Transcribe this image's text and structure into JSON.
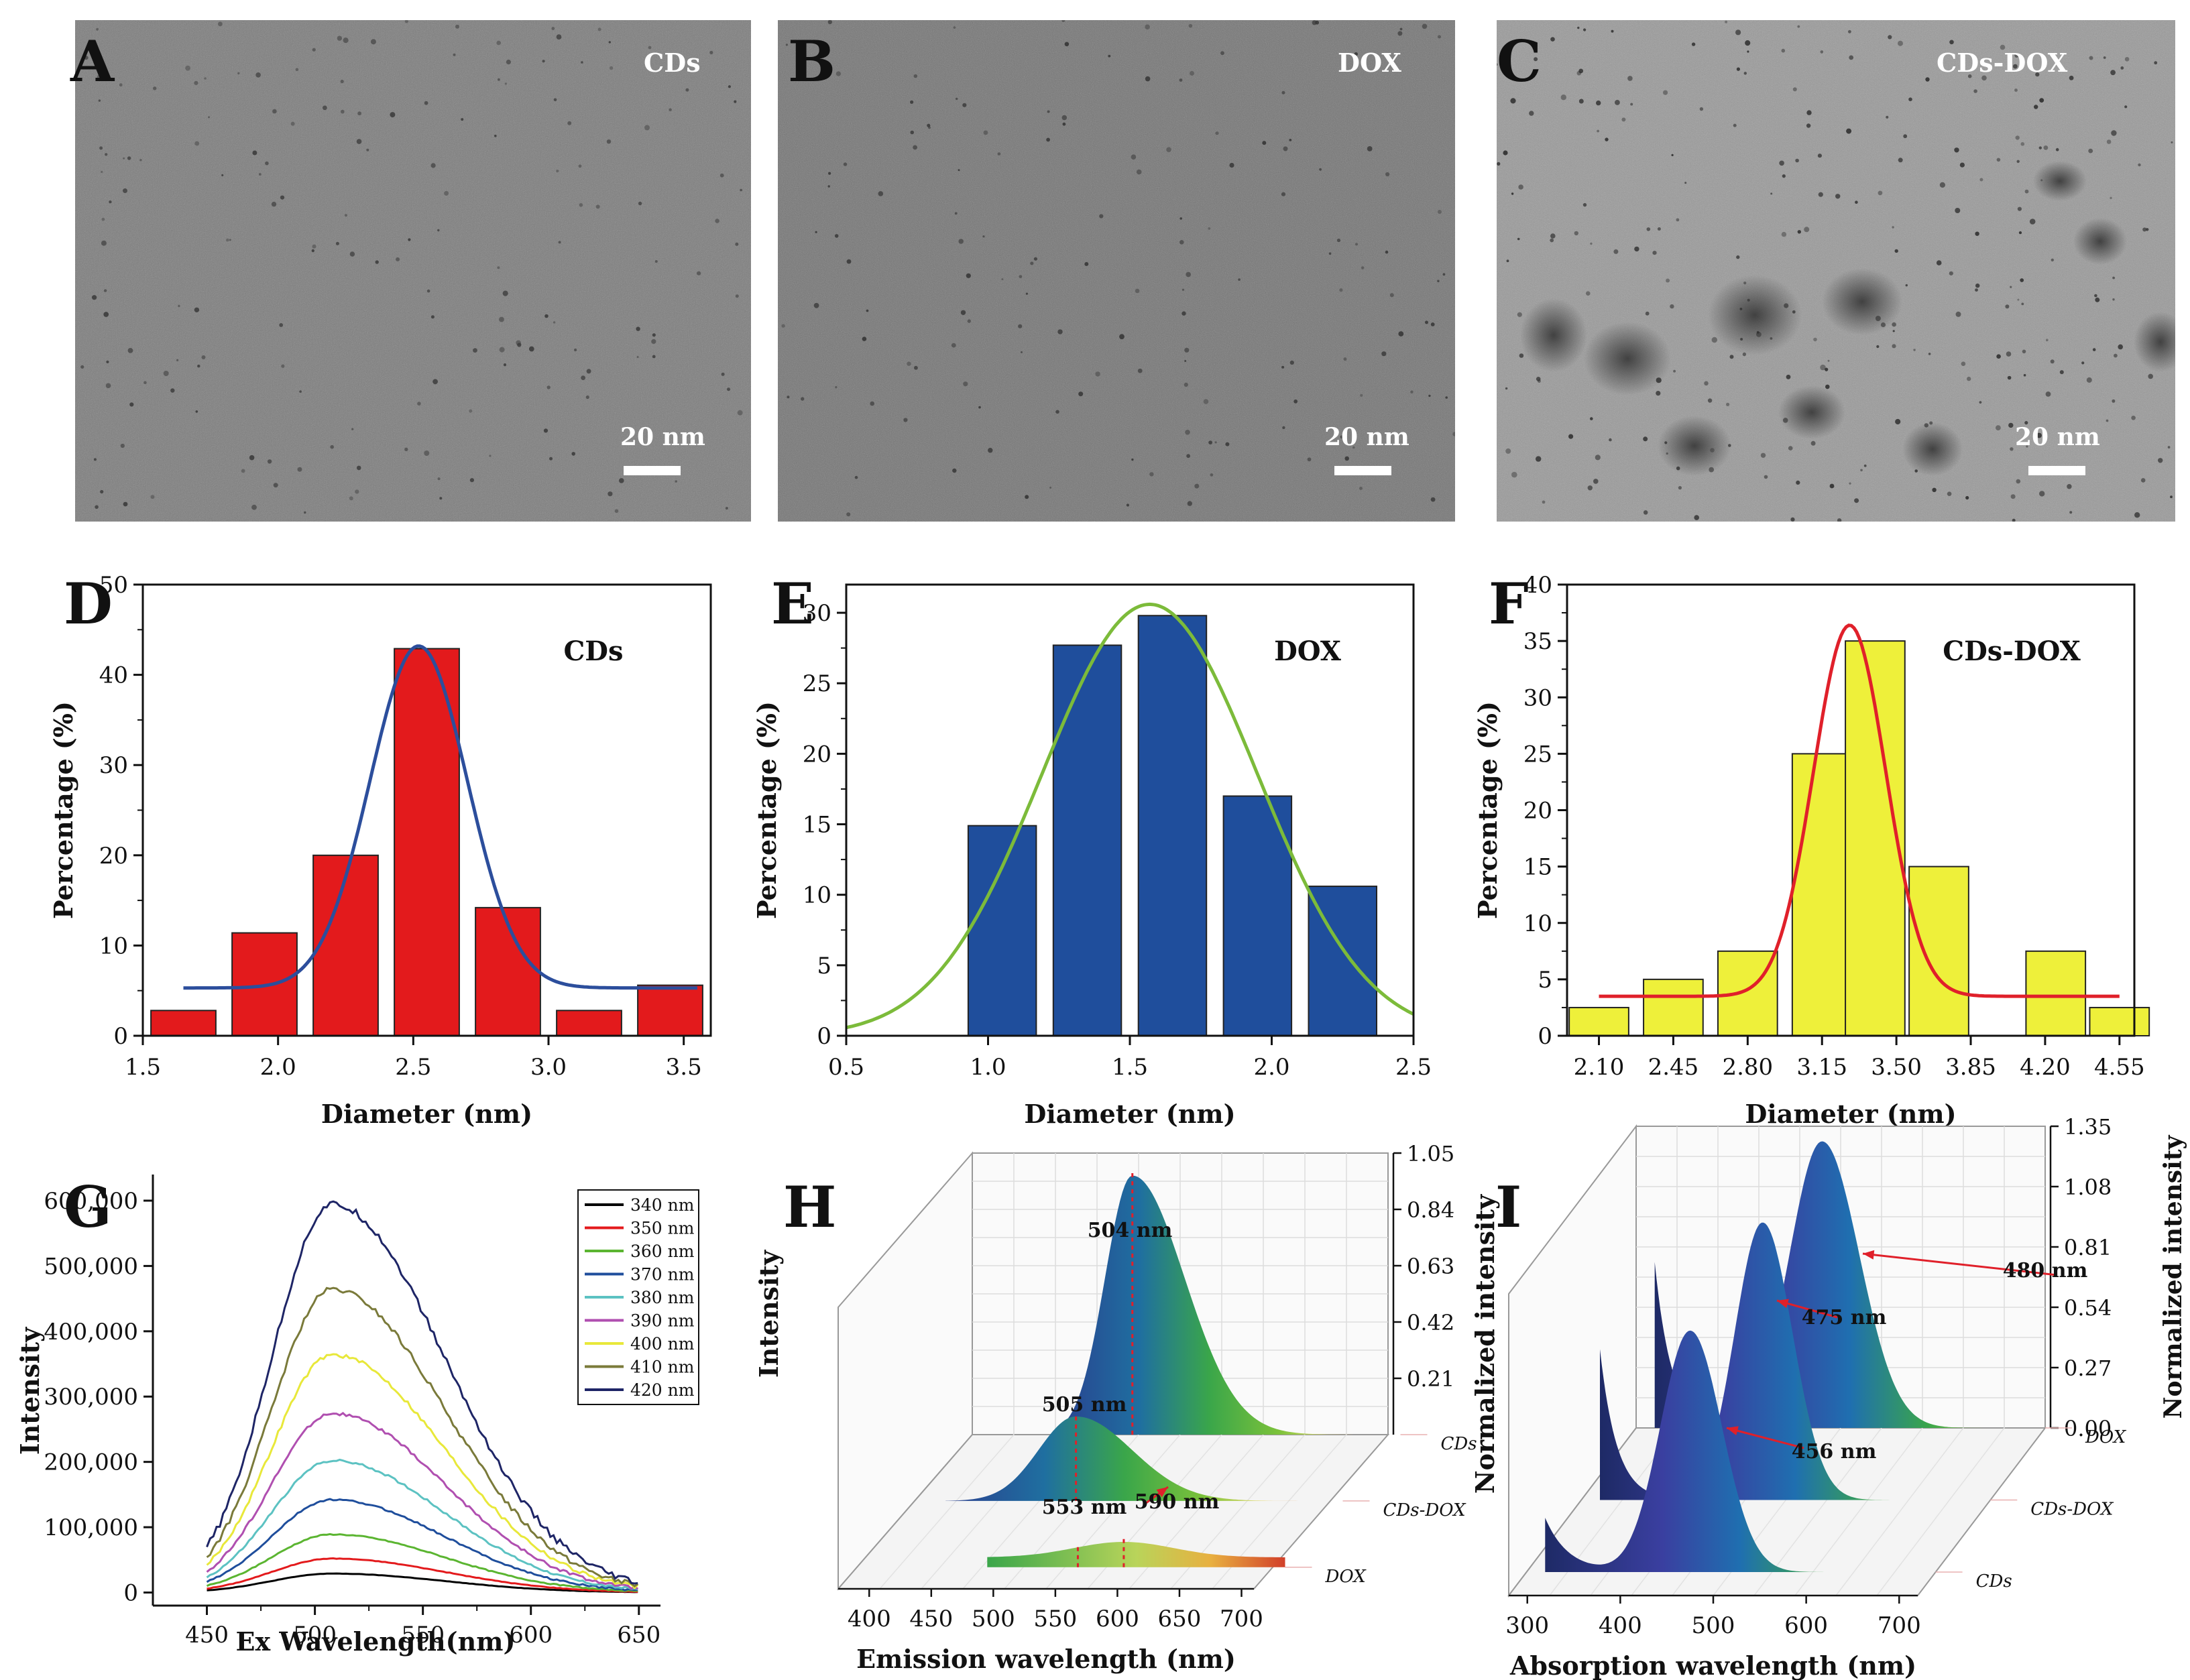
{
  "panels": {
    "A": {
      "letter": "A",
      "sample": "CDs",
      "scale": "20 nm"
    },
    "B": {
      "letter": "B",
      "sample": "DOX",
      "scale": "20 nm"
    },
    "C": {
      "letter": "C",
      "sample": "CDs-DOX",
      "scale": "20 nm"
    }
  },
  "colors": {
    "tem_bg_A": "#7d7d7d",
    "tem_bg_B": "#767676",
    "tem_bg_C": "#9a9a9a"
  },
  "chart_data": [
    {
      "id": "D",
      "type": "bar",
      "letter": "D",
      "title": "CDs",
      "xlabel": "Diameter (nm)",
      "ylabel": "Percentage (%)",
      "xlim": [
        1.5,
        3.6
      ],
      "ylim": [
        0,
        50
      ],
      "xticks": [
        1.5,
        2.0,
        2.5,
        3.0,
        3.5
      ],
      "xtick_labels": [
        "1.5",
        "2.0",
        "2.5",
        "3.0",
        "3.5"
      ],
      "yticks": [
        0,
        10,
        20,
        30,
        40,
        50
      ],
      "ytick_labels": [
        "0",
        "10",
        "20",
        "30",
        "40",
        "50"
      ],
      "bar_width": 0.24,
      "categories": [
        1.65,
        1.95,
        2.25,
        2.55,
        2.85,
        3.15,
        3.45
      ],
      "values": [
        2.8,
        11.4,
        20.0,
        42.9,
        14.2,
        2.8,
        5.6
      ],
      "bar_color": "#e31a1c",
      "fit": {
        "type": "gaussian",
        "base": 5.3,
        "amp": 37.9,
        "mu": 2.52,
        "sigma": 0.18,
        "x_range": [
          1.65,
          3.55
        ],
        "color": "#2c4e9c"
      }
    },
    {
      "id": "E",
      "type": "bar",
      "letter": "E",
      "title": "DOX",
      "xlabel": "Diameter (nm)",
      "ylabel": "Percentage (%)",
      "xlim": [
        0.5,
        2.5
      ],
      "ylim": [
        0,
        32
      ],
      "xticks": [
        0.5,
        1.0,
        1.5,
        2.0,
        2.5
      ],
      "xtick_labels": [
        "0.5",
        "1.0",
        "1.5",
        "2.0",
        "2.5"
      ],
      "yticks": [
        0,
        5,
        10,
        15,
        20,
        25,
        30
      ],
      "ytick_labels": [
        "0",
        "5",
        "10",
        "15",
        "20",
        "25",
        "30"
      ],
      "bar_width": 0.24,
      "categories": [
        1.05,
        1.35,
        1.65,
        1.95,
        2.25
      ],
      "values": [
        14.9,
        27.7,
        29.8,
        17.0,
        10.6
      ],
      "bar_color": "#1f4e9c",
      "fit": {
        "type": "gaussian",
        "base": 0,
        "amp": 30.6,
        "mu": 1.57,
        "sigma": 0.38,
        "x_range": [
          0.5,
          2.5
        ],
        "color": "#7cbb3a"
      }
    },
    {
      "id": "F",
      "type": "bar",
      "letter": "F",
      "title": "CDs-DOX",
      "xlabel": "Diameter (nm)",
      "ylabel": "Percentage (%)",
      "xlim": [
        1.95,
        4.62
      ],
      "ylim": [
        0,
        40
      ],
      "xticks": [
        2.1,
        2.45,
        2.8,
        3.15,
        3.5,
        3.85,
        4.2,
        4.55
      ],
      "xtick_labels": [
        "2.10",
        "2.45",
        "2.80",
        "3.15",
        "3.50",
        "3.85",
        "4.20",
        "4.55"
      ],
      "yticks": [
        0,
        5,
        10,
        15,
        20,
        25,
        30,
        35,
        40
      ],
      "ytick_labels": [
        "0",
        "5",
        "10",
        "15",
        "20",
        "25",
        "30",
        "35",
        "40"
      ],
      "bar_width": 0.28,
      "categories": [
        2.1,
        2.45,
        2.8,
        3.15,
        3.4,
        3.7,
        4.25,
        4.55
      ],
      "values": [
        2.5,
        5.0,
        7.5,
        25.0,
        35.0,
        15.0,
        7.5,
        2.5
      ],
      "bar_color": "#eef03a",
      "fit": {
        "type": "gaussian",
        "base": 3.5,
        "amp": 32.9,
        "mu": 3.28,
        "sigma": 0.17,
        "x_range": [
          2.1,
          4.55
        ],
        "color": "#e0202a"
      }
    },
    {
      "id": "G",
      "type": "line",
      "letter": "G",
      "title": "",
      "xlabel": "Ex Wavelength(nm)",
      "ylabel": "Intensity",
      "xlim": [
        425,
        660
      ],
      "ylim": [
        -20000,
        640000
      ],
      "xticks": [
        450,
        500,
        550,
        600,
        650
      ],
      "xtick_labels": [
        "450",
        "500",
        "550",
        "600",
        "650"
      ],
      "yticks": [
        0,
        100000,
        200000,
        300000,
        400000,
        500000,
        600000
      ],
      "ytick_labels": [
        "0",
        "100,000",
        "200,000",
        "300,000",
        "400,000",
        "500,000",
        "600,000"
      ],
      "x_range": [
        450,
        650
      ],
      "peak_x": 508,
      "series": [
        {
          "name": "340 nm",
          "peak": 25000,
          "color": "#000000"
        },
        {
          "name": "350 nm",
          "peak": 48000,
          "color": "#e31a1c"
        },
        {
          "name": "360 nm",
          "peak": 85000,
          "color": "#5bb531"
        },
        {
          "name": "370 nm",
          "peak": 138000,
          "color": "#1f4e9c"
        },
        {
          "name": "380 nm",
          "peak": 198000,
          "color": "#5cc2c2"
        },
        {
          "name": "390 nm",
          "peak": 270000,
          "color": "#b04fb0"
        },
        {
          "name": "400 nm",
          "peak": 360000,
          "color": "#e8e83a"
        },
        {
          "name": "410 nm",
          "peak": 460000,
          "color": "#7a7a3a"
        },
        {
          "name": "420 nm",
          "peak": 590000,
          "color": "#1e2566"
        }
      ]
    },
    {
      "id": "H",
      "type": "area",
      "letter": "H",
      "title": "",
      "xlabel": "Emission wavelength (nm)",
      "ylabel": "Intensity",
      "xticks": [
        400,
        450,
        500,
        550,
        600,
        650,
        700
      ],
      "xtick_labels": [
        "400",
        "450",
        "500",
        "550",
        "600",
        "650",
        "700"
      ],
      "zticks": [
        0.21,
        0.42,
        0.63,
        0.84,
        1.05
      ],
      "ztick_labels": [
        "0.21",
        "0.42",
        "0.63",
        "0.84",
        "1.05"
      ],
      "series": [
        {
          "name": "CDs",
          "peaks": [
            {
              "x": 504,
              "label": "504 nm"
            }
          ]
        },
        {
          "name": "CDs-DOX",
          "peaks": [
            {
              "x": 505,
              "label": "505 nm"
            }
          ]
        },
        {
          "name": "DOX",
          "peaks": [
            {
              "x": 553,
              "label": "553 nm"
            },
            {
              "x": 590,
              "label": "590 nm"
            }
          ]
        }
      ]
    },
    {
      "id": "I",
      "type": "area",
      "letter": "I",
      "title": "",
      "xlabel": "Absorption wavelength (nm)",
      "ylabel": "Normalized intensity",
      "zlabel": "Normalized intensity",
      "xticks": [
        300,
        400,
        500,
        600,
        700
      ],
      "xtick_labels": [
        "300",
        "400",
        "500",
        "600",
        "700"
      ],
      "zticks": [
        0.0,
        0.27,
        0.54,
        0.81,
        1.08,
        1.35
      ],
      "ztick_labels": [
        "0.00",
        "0.27",
        "0.54",
        "0.81",
        "1.08",
        "1.35"
      ],
      "series": [
        {
          "name": "DOX",
          "peaks": [
            {
              "x": 480,
              "label": "480 nm"
            }
          ]
        },
        {
          "name": "CDs-DOX",
          "peaks": [
            {
              "x": 475,
              "label": "475 nm"
            }
          ]
        },
        {
          "name": "CDs",
          "peaks": [
            {
              "x": 456,
              "label": "456 nm"
            }
          ]
        }
      ]
    }
  ]
}
